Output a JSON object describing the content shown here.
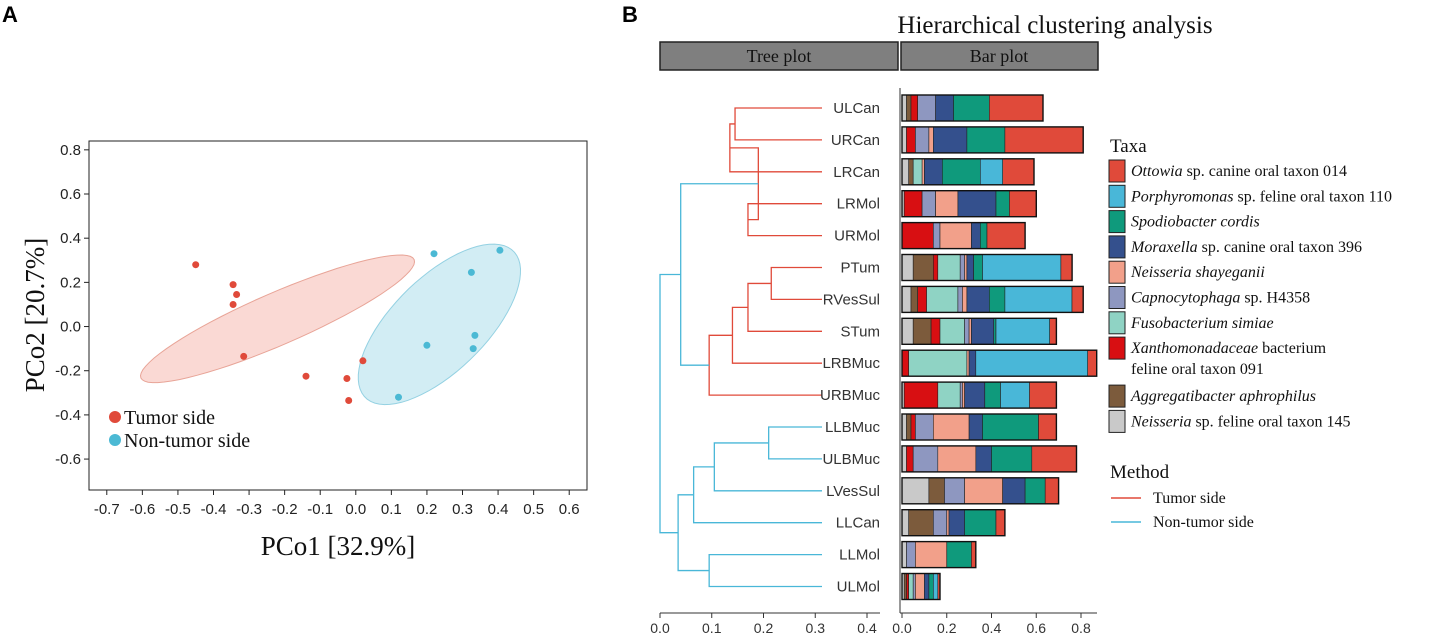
{
  "chart_data": [
    {
      "type": "scatter",
      "panel_label": "A",
      "xlabel": "PCo1 [32.9%]",
      "ylabel": "PCo2 [20.7%]",
      "xlim": [
        -0.75,
        0.65
      ],
      "ylim": [
        -0.74,
        0.84
      ],
      "xticks": [
        "-0.7",
        "-0.6",
        "-0.5",
        "-0.4",
        "-0.3",
        "-0.2",
        "-0.1",
        "0.0",
        "0.1",
        "0.2",
        "0.3",
        "0.4",
        "0.5",
        "0.6"
      ],
      "yticks": [
        "0.8",
        "0.6",
        "0.4",
        "0.2",
        "0.0",
        "-0.2",
        "-0.4",
        "-0.6"
      ],
      "legend": [
        {
          "label": "Tumor side",
          "color": "#e04a3a"
        },
        {
          "label": "Non-tumor side",
          "color": "#4bb9d4"
        }
      ],
      "series": [
        {
          "name": "Tumor side",
          "color": "#e04a3a",
          "ellipse_color": "#f8c9c2",
          "points": [
            [
              -0.45,
              0.28
            ],
            [
              -0.345,
              0.19
            ],
            [
              -0.335,
              0.145
            ],
            [
              -0.345,
              0.1
            ],
            [
              -0.315,
              -0.135
            ],
            [
              -0.14,
              -0.225
            ],
            [
              -0.025,
              -0.235
            ],
            [
              0.02,
              -0.155
            ],
            [
              -0.02,
              -0.335
            ]
          ]
        },
        {
          "name": "Non-tumor side",
          "color": "#4bb9d4",
          "ellipse_color": "#bfe6f0",
          "points": [
            [
              0.22,
              0.33
            ],
            [
              0.405,
              0.345
            ],
            [
              0.325,
              0.245
            ],
            [
              0.335,
              -0.04
            ],
            [
              0.33,
              -0.1
            ],
            [
              0.2,
              -0.085
            ],
            [
              0.12,
              -0.32
            ]
          ]
        }
      ]
    },
    {
      "type": "dendrogram+stacked-bar",
      "panel_label": "B",
      "title": "Hierarchical clustering analysis",
      "tree_header": "Tree plot",
      "bar_header": "Bar plot",
      "tree_axis_ticks": [
        "0.0",
        "0.1",
        "0.2",
        "0.3",
        "0.4"
      ],
      "bar_axis_ticks": [
        "0.0",
        "0.2",
        "0.4",
        "0.6",
        "0.8"
      ],
      "samples": [
        "ULCan",
        "URCan",
        "LRCan",
        "LRMol",
        "URMol",
        "PTum",
        "RVesSul",
        "STum",
        "LRBMuc",
        "URBMuc",
        "LLBMuc",
        "ULBMuc",
        "LVesSul",
        "LLCan",
        "LLMol",
        "ULMol"
      ],
      "taxa": [
        {
          "name": "Ottowia",
          "rest": " sp. canine oral taxon 014",
          "color": "#e04a3a"
        },
        {
          "name": "Porphyromonas",
          "rest": " sp. feline oral taxon 110",
          "color": "#49b7d8"
        },
        {
          "name": "Spodiobacter cordis",
          "rest": "",
          "color": "#0f9a7c"
        },
        {
          "name": "Moraxella",
          "rest": " sp. canine oral taxon 396",
          "color": "#34508d"
        },
        {
          "name": "Neisseria shayeganii",
          "rest": "",
          "color": "#f2a08a"
        },
        {
          "name": "Capnocytophaga",
          "rest": " sp. H4358",
          "color": "#8e97c0"
        },
        {
          "name": "Fusobacterium simiae",
          "rest": "",
          "color": "#8fd3c4"
        },
        {
          "name": "Xanthomonadaceae",
          "rest": " bacterium",
          "rest2": "feline oral taxon 091",
          "color": "#d80f12"
        },
        {
          "name": "Aggregatibacter aphrophilus",
          "rest": "",
          "color": "#7c5b3c"
        },
        {
          "name": "Neisseria",
          "rest": " sp. feline oral taxon 145",
          "color": "#c9c9c9"
        }
      ],
      "bar_order": [
        "Neisseria sp. 145",
        "Aggregatibacter",
        "Xanthomonadaceae",
        "Fusobacterium",
        "Capnocytophaga",
        "Neisseria shayeganii",
        "Moraxella",
        "Spodiobacter",
        "Porphyromonas",
        "Ottowia"
      ],
      "bars": [
        [
          0.02,
          0.02,
          0.03,
          0.0,
          0.08,
          0.0,
          0.08,
          0.16,
          0.0,
          0.24
        ],
        [
          0.02,
          0.0,
          0.04,
          0.0,
          0.06,
          0.02,
          0.15,
          0.17,
          0.0,
          0.35
        ],
        [
          0.03,
          0.02,
          0.0,
          0.04,
          0.0,
          0.01,
          0.08,
          0.17,
          0.1,
          0.14
        ],
        [
          0.01,
          0.0,
          0.08,
          0.0,
          0.06,
          0.1,
          0.17,
          0.06,
          0.0,
          0.12
        ],
        [
          0.0,
          0.0,
          0.14,
          0.0,
          0.03,
          0.14,
          0.04,
          0.03,
          0.0,
          0.17
        ],
        [
          0.05,
          0.09,
          0.02,
          0.1,
          0.02,
          0.01,
          0.03,
          0.04,
          0.35,
          0.05
        ],
        [
          0.04,
          0.03,
          0.04,
          0.14,
          0.02,
          0.02,
          0.1,
          0.07,
          0.3,
          0.05
        ],
        [
          0.05,
          0.08,
          0.04,
          0.11,
          0.02,
          0.01,
          0.1,
          0.01,
          0.24,
          0.03
        ],
        [
          0.0,
          0.0,
          0.03,
          0.26,
          0.0,
          0.01,
          0.03,
          0.0,
          0.5,
          0.04
        ],
        [
          0.01,
          0.0,
          0.15,
          0.1,
          0.01,
          0.01,
          0.09,
          0.07,
          0.13,
          0.12
        ],
        [
          0.02,
          0.02,
          0.02,
          0.0,
          0.08,
          0.16,
          0.06,
          0.25,
          0.0,
          0.08
        ],
        [
          0.02,
          0.0,
          0.03,
          0.0,
          0.11,
          0.17,
          0.07,
          0.18,
          0.0,
          0.2
        ],
        [
          0.12,
          0.07,
          0.0,
          0.0,
          0.09,
          0.17,
          0.1,
          0.09,
          0.0,
          0.06
        ],
        [
          0.03,
          0.11,
          0.0,
          0.0,
          0.06,
          0.01,
          0.07,
          0.14,
          0.0,
          0.04
        ],
        [
          0.02,
          0.0,
          0.0,
          0.0,
          0.04,
          0.14,
          0.0,
          0.11,
          0.0,
          0.02
        ],
        [
          0.01,
          0.01,
          0.01,
          0.02,
          0.01,
          0.04,
          0.02,
          0.02,
          0.02,
          0.01
        ]
      ],
      "method_title": "Method",
      "methods": [
        {
          "label": "Tumor side",
          "color": "#e04a3a"
        },
        {
          "label": "Non-tumor side",
          "color": "#49b7d8"
        }
      ],
      "legend_title": "Taxa",
      "dendrogram": {
        "merges": [
          {
            "a": "ULCan",
            "b": "URCan",
            "h": 0.145,
            "method": "tumor"
          },
          {
            "a": "m0",
            "b": "LRCan",
            "h": 0.135,
            "method": "tumor"
          },
          {
            "a": "LRMol",
            "b": "URMol",
            "h": 0.17,
            "method": "tumor"
          },
          {
            "a": "m1",
            "b": "m2",
            "h": 0.19,
            "method": "tumor"
          },
          {
            "a": "PTum",
            "b": "RVesSul",
            "h": 0.215,
            "method": "tumor"
          },
          {
            "a": "m4",
            "b": "STum",
            "h": 0.17,
            "method": "tumor"
          },
          {
            "a": "m5",
            "b": "LRBMuc",
            "h": 0.14,
            "method": "tumor"
          },
          {
            "a": "m6",
            "b": "URBMuc",
            "h": 0.095,
            "method": "tumor"
          },
          {
            "a": "m3",
            "b": "m7",
            "h": 0.04,
            "method": "non"
          },
          {
            "a": "LLBMuc",
            "b": "ULBMuc",
            "h": 0.21,
            "method": "non"
          },
          {
            "a": "m9",
            "b": "LVesSul",
            "h": 0.105,
            "method": "non"
          },
          {
            "a": "m10",
            "b": "LLCan",
            "h": 0.065,
            "method": "non"
          },
          {
            "a": "LLMol",
            "b": "ULMol",
            "h": 0.095,
            "method": "non"
          },
          {
            "a": "m11",
            "b": "m12",
            "h": 0.035,
            "method": "non"
          },
          {
            "a": "m8",
            "b": "m13",
            "h": 0.0,
            "method": "non"
          }
        ]
      }
    }
  ]
}
